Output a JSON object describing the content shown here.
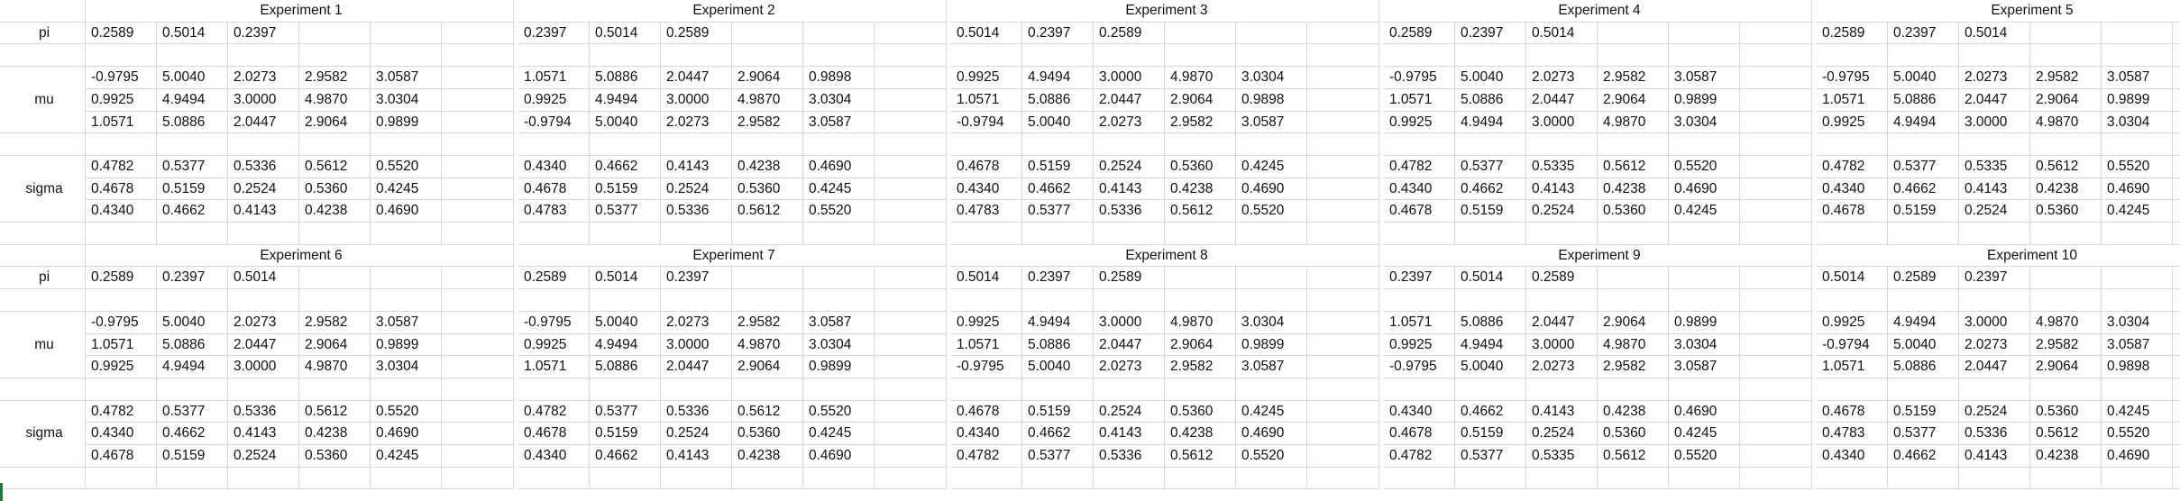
{
  "sheet": {
    "row_labels": {
      "pi": "pi",
      "mu": "mu",
      "sigma": "sigma"
    },
    "experiments": [
      {
        "title": "Experiment 1",
        "pi": [
          "0.2589",
          "0.5014",
          "0.2397"
        ],
        "mu": [
          [
            "-0.9795",
            "5.0040",
            "2.0273",
            "2.9582",
            "3.0587"
          ],
          [
            "0.9925",
            "4.9494",
            "3.0000",
            "4.9870",
            "3.0304"
          ],
          [
            "1.0571",
            "5.0886",
            "2.0447",
            "2.9064",
            "0.9899"
          ]
        ],
        "sigma": [
          [
            "0.4782",
            "0.5377",
            "0.5336",
            "0.5612",
            "0.5520"
          ],
          [
            "0.4678",
            "0.5159",
            "0.2524",
            "0.5360",
            "0.4245"
          ],
          [
            "0.4340",
            "0.4662",
            "0.4143",
            "0.4238",
            "0.4690"
          ]
        ]
      },
      {
        "title": "Experiment 2",
        "pi": [
          "0.2397",
          "0.5014",
          "0.2589"
        ],
        "mu": [
          [
            "1.0571",
            "5.0886",
            "2.0447",
            "2.9064",
            "0.9898"
          ],
          [
            "0.9925",
            "4.9494",
            "3.0000",
            "4.9870",
            "3.0304"
          ],
          [
            "-0.9794",
            "5.0040",
            "2.0273",
            "2.9582",
            "3.0587"
          ]
        ],
        "sigma": [
          [
            "0.4340",
            "0.4662",
            "0.4143",
            "0.4238",
            "0.4690"
          ],
          [
            "0.4678",
            "0.5159",
            "0.2524",
            "0.5360",
            "0.4245"
          ],
          [
            "0.4783",
            "0.5377",
            "0.5336",
            "0.5612",
            "0.5520"
          ]
        ]
      },
      {
        "title": "Experiment 3",
        "pi": [
          "0.5014",
          "0.2397",
          "0.2589"
        ],
        "mu": [
          [
            "0.9925",
            "4.9494",
            "3.0000",
            "4.9870",
            "3.0304"
          ],
          [
            "1.0571",
            "5.0886",
            "2.0447",
            "2.9064",
            "0.9898"
          ],
          [
            "-0.9794",
            "5.0040",
            "2.0273",
            "2.9582",
            "3.0587"
          ]
        ],
        "sigma": [
          [
            "0.4678",
            "0.5159",
            "0.2524",
            "0.5360",
            "0.4245"
          ],
          [
            "0.4340",
            "0.4662",
            "0.4143",
            "0.4238",
            "0.4690"
          ],
          [
            "0.4783",
            "0.5377",
            "0.5336",
            "0.5612",
            "0.5520"
          ]
        ]
      },
      {
        "title": "Experiment 4",
        "pi": [
          "0.2589",
          "0.2397",
          "0.5014"
        ],
        "mu": [
          [
            "-0.9795",
            "5.0040",
            "2.0273",
            "2.9582",
            "3.0587"
          ],
          [
            "1.0571",
            "5.0886",
            "2.0447",
            "2.9064",
            "0.9899"
          ],
          [
            "0.9925",
            "4.9494",
            "3.0000",
            "4.9870",
            "3.0304"
          ]
        ],
        "sigma": [
          [
            "0.4782",
            "0.5377",
            "0.5335",
            "0.5612",
            "0.5520"
          ],
          [
            "0.4340",
            "0.4662",
            "0.4143",
            "0.4238",
            "0.4690"
          ],
          [
            "0.4678",
            "0.5159",
            "0.2524",
            "0.5360",
            "0.4245"
          ]
        ]
      },
      {
        "title": "Experiment 5",
        "pi": [
          "0.2589",
          "0.2397",
          "0.5014"
        ],
        "mu": [
          [
            "-0.9795",
            "5.0040",
            "2.0273",
            "2.9582",
            "3.0587"
          ],
          [
            "1.0571",
            "5.0886",
            "2.0447",
            "2.9064",
            "0.9899"
          ],
          [
            "0.9925",
            "4.9494",
            "3.0000",
            "4.9870",
            "3.0304"
          ]
        ],
        "sigma": [
          [
            "0.4782",
            "0.5377",
            "0.5335",
            "0.5612",
            "0.5520"
          ],
          [
            "0.4340",
            "0.4662",
            "0.4143",
            "0.4238",
            "0.4690"
          ],
          [
            "0.4678",
            "0.5159",
            "0.2524",
            "0.5360",
            "0.4245"
          ]
        ]
      },
      {
        "title": "Experiment 6",
        "pi": [
          "0.2589",
          "0.2397",
          "0.5014"
        ],
        "mu": [
          [
            "-0.9795",
            "5.0040",
            "2.0273",
            "2.9582",
            "3.0587"
          ],
          [
            "1.0571",
            "5.0886",
            "2.0447",
            "2.9064",
            "0.9899"
          ],
          [
            "0.9925",
            "4.9494",
            "3.0000",
            "4.9870",
            "3.0304"
          ]
        ],
        "sigma": [
          [
            "0.4782",
            "0.5377",
            "0.5336",
            "0.5612",
            "0.5520"
          ],
          [
            "0.4340",
            "0.4662",
            "0.4143",
            "0.4238",
            "0.4690"
          ],
          [
            "0.4678",
            "0.5159",
            "0.2524",
            "0.5360",
            "0.4245"
          ]
        ]
      },
      {
        "title": "Experiment 7",
        "pi": [
          "0.2589",
          "0.5014",
          "0.2397"
        ],
        "mu": [
          [
            "-0.9795",
            "5.0040",
            "2.0273",
            "2.9582",
            "3.0587"
          ],
          [
            "0.9925",
            "4.9494",
            "3.0000",
            "4.9870",
            "3.0304"
          ],
          [
            "1.0571",
            "5.0886",
            "2.0447",
            "2.9064",
            "0.9899"
          ]
        ],
        "sigma": [
          [
            "0.4782",
            "0.5377",
            "0.5336",
            "0.5612",
            "0.5520"
          ],
          [
            "0.4678",
            "0.5159",
            "0.2524",
            "0.5360",
            "0.4245"
          ],
          [
            "0.4340",
            "0.4662",
            "0.4143",
            "0.4238",
            "0.4690"
          ]
        ]
      },
      {
        "title": "Experiment 8",
        "pi": [
          "0.5014",
          "0.2397",
          "0.2589"
        ],
        "mu": [
          [
            "0.9925",
            "4.9494",
            "3.0000",
            "4.9870",
            "3.0304"
          ],
          [
            "1.0571",
            "5.0886",
            "2.0447",
            "2.9064",
            "0.9899"
          ],
          [
            "-0.9795",
            "5.0040",
            "2.0273",
            "2.9582",
            "3.0587"
          ]
        ],
        "sigma": [
          [
            "0.4678",
            "0.5159",
            "0.2524",
            "0.5360",
            "0.4245"
          ],
          [
            "0.4340",
            "0.4662",
            "0.4143",
            "0.4238",
            "0.4690"
          ],
          [
            "0.4782",
            "0.5377",
            "0.5336",
            "0.5612",
            "0.5520"
          ]
        ]
      },
      {
        "title": "Experiment 9",
        "pi": [
          "0.2397",
          "0.5014",
          "0.2589"
        ],
        "mu": [
          [
            "1.0571",
            "5.0886",
            "2.0447",
            "2.9064",
            "0.9899"
          ],
          [
            "0.9925",
            "4.9494",
            "3.0000",
            "4.9870",
            "3.0304"
          ],
          [
            "-0.9795",
            "5.0040",
            "2.0273",
            "2.9582",
            "3.0587"
          ]
        ],
        "sigma": [
          [
            "0.4340",
            "0.4662",
            "0.4143",
            "0.4238",
            "0.4690"
          ],
          [
            "0.4678",
            "0.5159",
            "0.2524",
            "0.5360",
            "0.4245"
          ],
          [
            "0.4782",
            "0.5377",
            "0.5335",
            "0.5612",
            "0.5520"
          ]
        ]
      },
      {
        "title": "Experiment 10",
        "pi": [
          "0.5014",
          "0.2589",
          "0.2397"
        ],
        "mu": [
          [
            "0.9925",
            "4.9494",
            "3.0000",
            "4.9870",
            "3.0304"
          ],
          [
            "-0.9794",
            "5.0040",
            "2.0273",
            "2.9582",
            "3.0587"
          ],
          [
            "1.0571",
            "5.0886",
            "2.0447",
            "2.9064",
            "0.9898"
          ]
        ],
        "sigma": [
          [
            "0.4678",
            "0.5159",
            "0.2524",
            "0.5360",
            "0.4245"
          ],
          [
            "0.4783",
            "0.5377",
            "0.5336",
            "0.5612",
            "0.5520"
          ],
          [
            "0.4340",
            "0.4662",
            "0.4143",
            "0.4238",
            "0.4690"
          ]
        ]
      }
    ]
  }
}
